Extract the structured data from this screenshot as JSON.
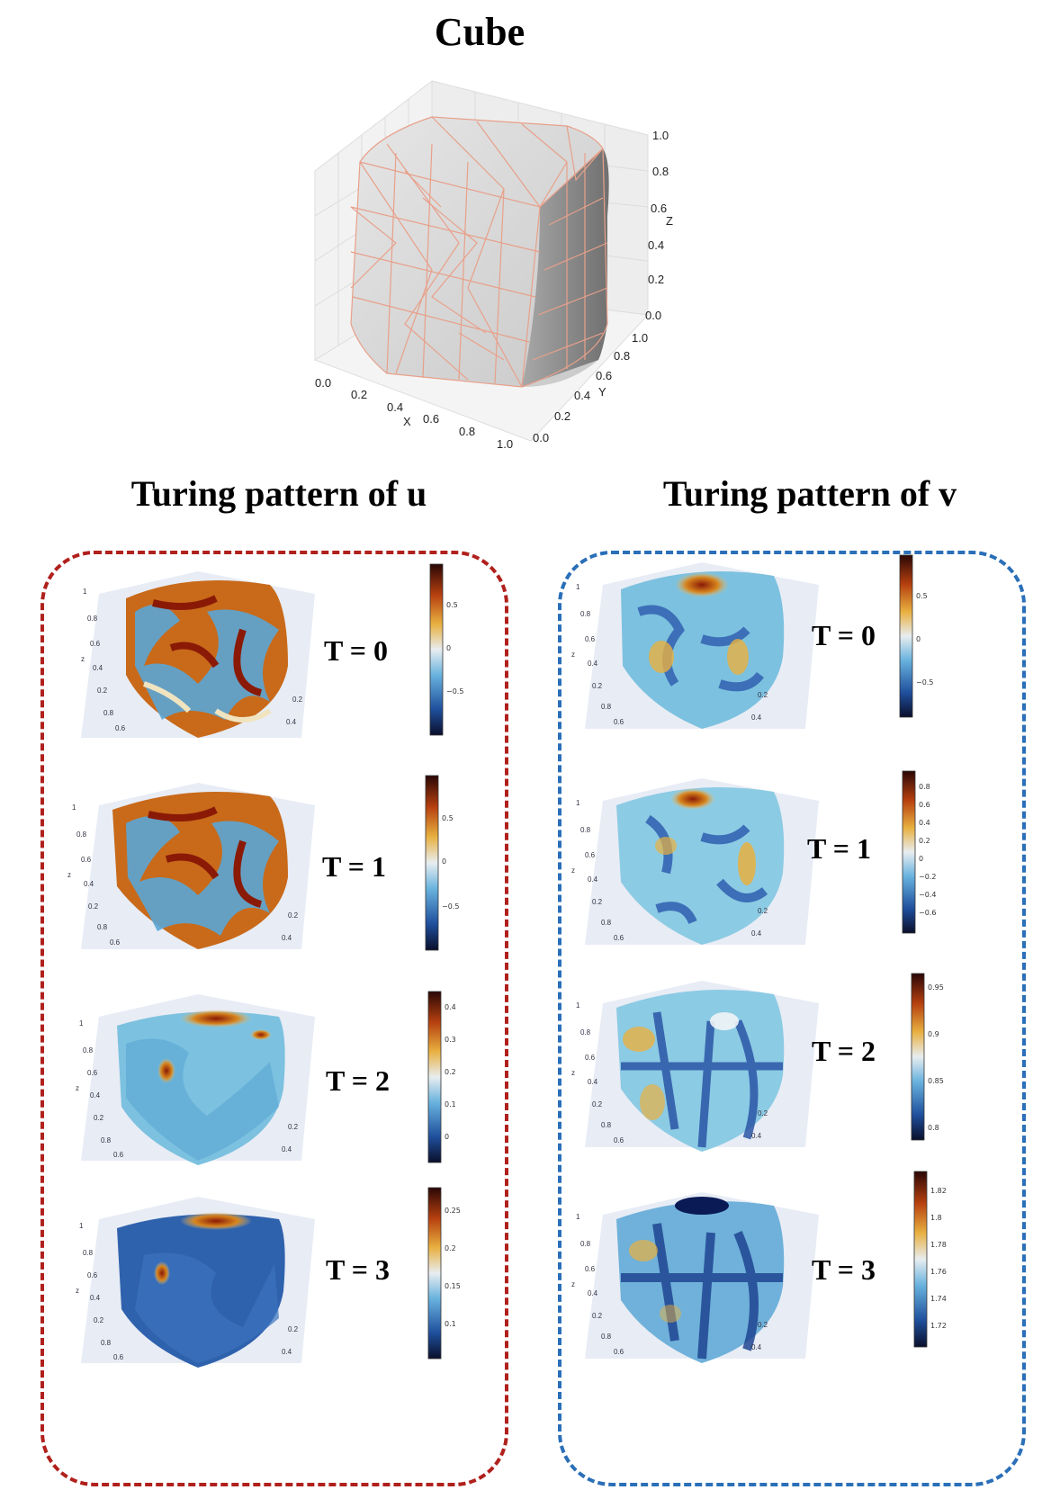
{
  "title": "Cube",
  "cube_axes": {
    "x_label": "X",
    "y_label": "Y",
    "z_label": "Z",
    "x_ticks": [
      "0.0",
      "0.2",
      "0.4",
      "0.6",
      "0.8",
      "1.0"
    ],
    "y_ticks": [
      "0.0",
      "0.2",
      "0.4",
      "0.6",
      "0.8",
      "1.0"
    ],
    "z_ticks": [
      "0.0",
      "0.2",
      "0.4",
      "0.6",
      "0.8",
      "1.0"
    ],
    "mesh_edge_color": "#e8a08a",
    "face_color": "#d9d9d9"
  },
  "u_panel": {
    "title": "Turing pattern of u",
    "border_color": "#b0201c",
    "frames": [
      {
        "label": "T = 0",
        "cb_ticks": [
          "0.5",
          "0",
          "−0.5"
        ]
      },
      {
        "label": "T = 1",
        "cb_ticks": [
          "0.5",
          "0",
          "−0.5"
        ]
      },
      {
        "label": "T = 2",
        "cb_ticks": [
          "0.4",
          "0.3",
          "0.2",
          "0.1",
          "0"
        ]
      },
      {
        "label": "T = 3",
        "cb_ticks": [
          "0.25",
          "0.2",
          "0.15",
          "0.1"
        ]
      }
    ]
  },
  "v_panel": {
    "title": "Turing pattern of v",
    "border_color": "#2a6fb8",
    "frames": [
      {
        "label": "T = 0",
        "cb_ticks": [
          "0.5",
          "0",
          "−0.5"
        ]
      },
      {
        "label": "T = 1",
        "cb_ticks": [
          "0.8",
          "0.6",
          "0.4",
          "0.2",
          "0",
          "−0.2",
          "−0.4",
          "−0.6"
        ]
      },
      {
        "label": "T = 2",
        "cb_ticks": [
          "0.95",
          "0.9",
          "0.85",
          "0.8"
        ]
      },
      {
        "label": "T = 3",
        "cb_ticks": [
          "1.82",
          "1.8",
          "1.78",
          "1.76",
          "1.74",
          "1.72"
        ]
      }
    ]
  },
  "small_axis_ticks": {
    "z": [
      "1",
      "0.8",
      "0.6",
      "0.4",
      "0.2"
    ],
    "z_label": "z",
    "y": [
      "0.8",
      "0.6"
    ],
    "x": [
      "0.2",
      "0.4"
    ]
  }
}
